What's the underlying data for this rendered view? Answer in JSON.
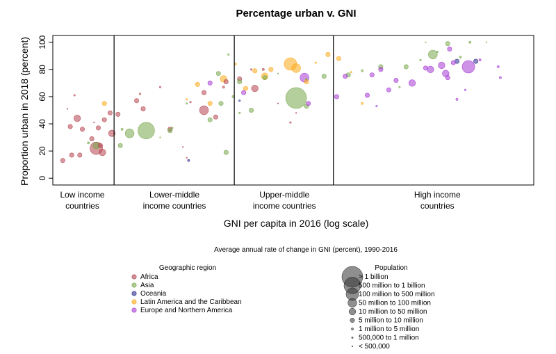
{
  "chart_data": {
    "type": "scatter",
    "title": "Percentage urban v. GNI",
    "xlabel": "GNI per capita in 2016 (log scale)",
    "ylabel": "Proportion urban in 2018 (percent)",
    "ylim": [
      -5,
      105
    ],
    "yticks": [
      0,
      20,
      40,
      60,
      80,
      100
    ],
    "x_scale": "log",
    "xlim": [
      500,
      120000
    ],
    "income_dividers": [
      1005,
      3955,
      12235
    ],
    "income_groups": [
      {
        "line1": "Low income",
        "line2": "countries",
        "x_center": 700
      },
      {
        "line1": "Lower-middle",
        "line2": "income countries",
        "x_center": 2000
      },
      {
        "line1": "Upper-middle",
        "line2": "income countries",
        "x_center": 7000
      },
      {
        "line1": "High income",
        "line2": "countries",
        "x_center": 40000
      }
    ],
    "note": "Average annual rate of change in GNI (percent), 1990-2016",
    "grid": false,
    "legend": {
      "region_title": "Geographic region",
      "regions": [
        {
          "name": "Africa",
          "color": "#b5444f"
        },
        {
          "name": "Asia",
          "color": "#77a84a"
        },
        {
          "name": "Oceania",
          "color": "#2b2c8e"
        },
        {
          "name": "Latin America and the Caribbean",
          "color": "#fba918"
        },
        {
          "name": "Europe and Northern America",
          "color": "#a63ad3"
        }
      ],
      "population_title": "Population",
      "population": [
        {
          "label": "> 1 billion",
          "size": 9
        },
        {
          "label": "500 million to 1 billion",
          "size": 8
        },
        {
          "label": "100 million to 500 million",
          "size": 7
        },
        {
          "label": "50 million to 100 million",
          "size": 6
        },
        {
          "label": "10 million to 50 million",
          "size": 5
        },
        {
          "label": "5 million to 10 million",
          "size": 4
        },
        {
          "label": "1 million to 5 million",
          "size": 3
        },
        {
          "label": "500,000 to 1 million",
          "size": 2
        },
        {
          "label": "< 500,000",
          "size": 1
        }
      ]
    },
    "series": [
      {
        "region": "Africa",
        "points": [
          {
            "x": 560,
            "y": 13,
            "size": 4
          },
          {
            "x": 620,
            "y": 17,
            "size": 4
          },
          {
            "x": 680,
            "y": 17,
            "size": 4
          },
          {
            "x": 610,
            "y": 38,
            "size": 4
          },
          {
            "x": 660,
            "y": 44,
            "size": 5
          },
          {
            "x": 700,
            "y": 36,
            "size": 4
          },
          {
            "x": 640,
            "y": 61,
            "size": 2
          },
          {
            "x": 590,
            "y": 51,
            "size": 1
          },
          {
            "x": 820,
            "y": 22,
            "size": 7
          },
          {
            "x": 880,
            "y": 19,
            "size": 5
          },
          {
            "x": 780,
            "y": 29,
            "size": 4
          },
          {
            "x": 840,
            "y": 37,
            "size": 4
          },
          {
            "x": 900,
            "y": 43,
            "size": 4
          },
          {
            "x": 960,
            "y": 48,
            "size": 4
          },
          {
            "x": 1050,
            "y": 47,
            "size": 4
          },
          {
            "x": 980,
            "y": 33,
            "size": 5
          },
          {
            "x": 860,
            "y": 24,
            "size": 4
          },
          {
            "x": 800,
            "y": 41,
            "size": 1
          },
          {
            "x": 1300,
            "y": 57,
            "size": 4
          },
          {
            "x": 1400,
            "y": 51,
            "size": 4
          },
          {
            "x": 1350,
            "y": 62,
            "size": 2
          },
          {
            "x": 1700,
            "y": 67,
            "size": 2
          },
          {
            "x": 1900,
            "y": 36,
            "size": 4
          },
          {
            "x": 2800,
            "y": 50,
            "size": 6
          },
          {
            "x": 2200,
            "y": 23,
            "size": 1
          },
          {
            "x": 2300,
            "y": 15,
            "size": 1
          },
          {
            "x": 2400,
            "y": 56,
            "size": 2
          },
          {
            "x": 2800,
            "y": 63,
            "size": 4
          },
          {
            "x": 3500,
            "y": 67,
            "size": 3
          },
          {
            "x": 3200,
            "y": 45,
            "size": 4
          },
          {
            "x": 3600,
            "y": 71,
            "size": 4
          },
          {
            "x": 4200,
            "y": 73,
            "size": 4
          },
          {
            "x": 5000,
            "y": 66,
            "size": 5
          },
          {
            "x": 5500,
            "y": 80,
            "size": 3
          },
          {
            "x": 4800,
            "y": 80,
            "size": 2
          },
          {
            "x": 6500,
            "y": 55,
            "size": 1
          },
          {
            "x": 8000,
            "y": 48,
            "size": 1
          },
          {
            "x": 7500,
            "y": 41,
            "size": 2
          }
        ]
      },
      {
        "region": "Asia",
        "points": [
          {
            "x": 750,
            "y": 26,
            "size": 3
          },
          {
            "x": 820,
            "y": 24,
            "size": 5
          },
          {
            "x": 1100,
            "y": 36,
            "size": 3
          },
          {
            "x": 1080,
            "y": 24,
            "size": 4
          },
          {
            "x": 1200,
            "y": 33,
            "size": 6
          },
          {
            "x": 1450,
            "y": 35,
            "size": 8
          },
          {
            "x": 1700,
            "y": 30,
            "size": 1
          },
          {
            "x": 1900,
            "y": 35,
            "size": 4
          },
          {
            "x": 1950,
            "y": 37,
            "size": 2
          },
          {
            "x": 2300,
            "y": 55,
            "size": 2
          },
          {
            "x": 3000,
            "y": 43,
            "size": 4
          },
          {
            "x": 3400,
            "y": 55,
            "size": 4
          },
          {
            "x": 3600,
            "y": 19,
            "size": 4
          },
          {
            "x": 3700,
            "y": 91,
            "size": 2
          },
          {
            "x": 3900,
            "y": 60,
            "size": 3
          },
          {
            "x": 4200,
            "y": 48,
            "size": 2
          },
          {
            "x": 4800,
            "y": 50,
            "size": 4
          },
          {
            "x": 5600,
            "y": 74,
            "size": 4
          },
          {
            "x": 8000,
            "y": 59,
            "size": 9
          },
          {
            "x": 9000,
            "y": 53,
            "size": 4
          },
          {
            "x": 9000,
            "y": 73,
            "size": 2
          },
          {
            "x": 11000,
            "y": 75,
            "size": 4
          },
          {
            "x": 6500,
            "y": 77,
            "size": 1
          },
          {
            "x": 3300,
            "y": 77,
            "size": 4
          },
          {
            "x": 4200,
            "y": 71,
            "size": 4
          },
          {
            "x": 14500,
            "y": 76,
            "size": 4
          },
          {
            "x": 17000,
            "y": 79,
            "size": 3
          },
          {
            "x": 21000,
            "y": 82,
            "size": 4
          },
          {
            "x": 28000,
            "y": 82,
            "size": 4
          },
          {
            "x": 26000,
            "y": 67,
            "size": 2
          },
          {
            "x": 38000,
            "y": 91,
            "size": 6
          },
          {
            "x": 45000,
            "y": 99,
            "size": 4
          },
          {
            "x": 52000,
            "y": 89,
            "size": 3
          },
          {
            "x": 58000,
            "y": 100,
            "size": 3
          },
          {
            "x": 70000,
            "y": 100,
            "size": 1
          },
          {
            "x": 35000,
            "y": 100,
            "size": 1
          },
          {
            "x": 33000,
            "y": 87,
            "size": 2
          },
          {
            "x": 40000,
            "y": 93,
            "size": 2
          }
        ]
      },
      {
        "region": "Oceania",
        "points": [
          {
            "x": 2350,
            "y": 13,
            "size": 3
          },
          {
            "x": 4200,
            "y": 57,
            "size": 2
          },
          {
            "x": 50000,
            "y": 86,
            "size": 4
          },
          {
            "x": 62000,
            "y": 86,
            "size": 4
          }
        ]
      },
      {
        "region": "Latin America and the Caribbean",
        "points": [
          {
            "x": 900,
            "y": 55,
            "size": 4
          },
          {
            "x": 2300,
            "y": 58,
            "size": 2
          },
          {
            "x": 2600,
            "y": 69,
            "size": 4
          },
          {
            "x": 3000,
            "y": 55,
            "size": 4
          },
          {
            "x": 3500,
            "y": 73,
            "size": 5
          },
          {
            "x": 4500,
            "y": 66,
            "size": 4
          },
          {
            "x": 5600,
            "y": 75,
            "size": 5
          },
          {
            "x": 6000,
            "y": 80,
            "size": 4
          },
          {
            "x": 7500,
            "y": 84,
            "size": 7
          },
          {
            "x": 8000,
            "y": 81,
            "size": 6
          },
          {
            "x": 9000,
            "y": 71,
            "size": 4
          },
          {
            "x": 10000,
            "y": 85,
            "size": 2
          },
          {
            "x": 11500,
            "y": 91,
            "size": 4
          },
          {
            "x": 13000,
            "y": 88,
            "size": 4
          },
          {
            "x": 15000,
            "y": 78,
            "size": 2
          },
          {
            "x": 17000,
            "y": 55,
            "size": 3
          },
          {
            "x": 4000,
            "y": 84,
            "size": 3
          },
          {
            "x": 5000,
            "y": 79,
            "size": 4
          }
        ]
      },
      {
        "region": "Europe and Northern America",
        "points": [
          {
            "x": 3000,
            "y": 70,
            "size": 4
          },
          {
            "x": 4400,
            "y": 63,
            "size": 4
          },
          {
            "x": 8800,
            "y": 74,
            "size": 6
          },
          {
            "x": 9200,
            "y": 55,
            "size": 4
          },
          {
            "x": 12700,
            "y": 60,
            "size": 4
          },
          {
            "x": 14000,
            "y": 75,
            "size": 4
          },
          {
            "x": 18000,
            "y": 61,
            "size": 4
          },
          {
            "x": 20000,
            "y": 53,
            "size": 2
          },
          {
            "x": 19000,
            "y": 76,
            "size": 4
          },
          {
            "x": 21000,
            "y": 80,
            "size": 4
          },
          {
            "x": 23000,
            "y": 65,
            "size": 4
          },
          {
            "x": 25000,
            "y": 72,
            "size": 4
          },
          {
            "x": 30000,
            "y": 70,
            "size": 5
          },
          {
            "x": 37000,
            "y": 80,
            "size": 5
          },
          {
            "x": 42000,
            "y": 83,
            "size": 5
          },
          {
            "x": 44000,
            "y": 77,
            "size": 5
          },
          {
            "x": 46000,
            "y": 95,
            "size": 4
          },
          {
            "x": 48000,
            "y": 85,
            "size": 4
          },
          {
            "x": 50000,
            "y": 58,
            "size": 3
          },
          {
            "x": 57000,
            "y": 82,
            "size": 7
          },
          {
            "x": 65000,
            "y": 87,
            "size": 3
          },
          {
            "x": 80000,
            "y": 82,
            "size": 3
          },
          {
            "x": 82000,
            "y": 74,
            "size": 3
          },
          {
            "x": 45000,
            "y": 74,
            "size": 4
          },
          {
            "x": 35000,
            "y": 81,
            "size": 4
          },
          {
            "x": 55000,
            "y": 65,
            "size": 2
          }
        ]
      }
    ]
  }
}
